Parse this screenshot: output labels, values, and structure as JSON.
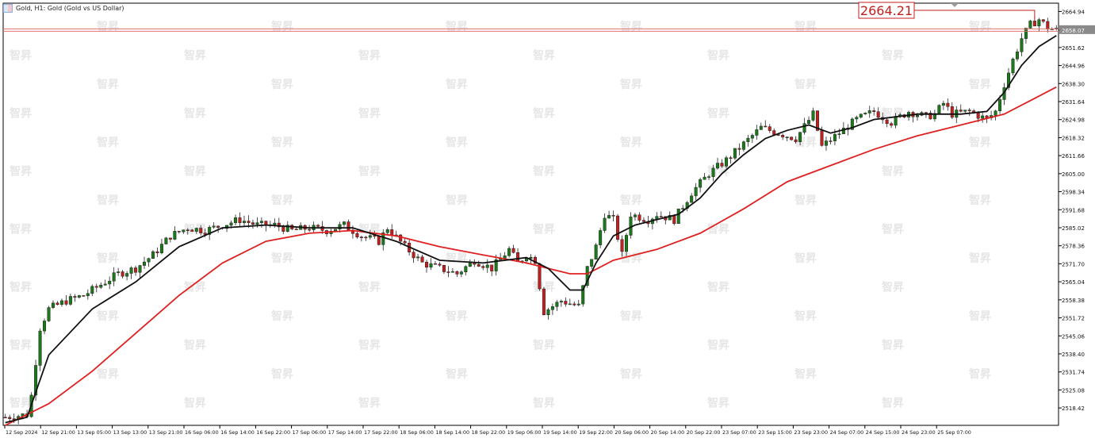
{
  "window": {
    "title": "Gold, H1: Gold (Gold vs US Dollar)",
    "watermark_text": "智昇"
  },
  "price_label": "2664.21",
  "current_price_tag": "2658.07",
  "colors": {
    "bull": "#1a7a1a",
    "bear": "#c41f1f",
    "ma_fast": "#111111",
    "ma_slow": "#e02020",
    "hline": "#e07070"
  },
  "chart_data": {
    "type": "candlestick",
    "title": "Gold, H1: Gold (Gold vs US Dollar)",
    "symbol": "Gold",
    "timeframe": "H1",
    "ylim": [
      2512,
      2668
    ],
    "y_ticks": [
      2664.94,
      2658.07,
      2651.62,
      2644.96,
      2638.3,
      2631.64,
      2624.98,
      2618.32,
      2611.66,
      2605.0,
      2598.34,
      2591.68,
      2585.02,
      2578.36,
      2571.7,
      2565.04,
      2558.38,
      2551.72,
      2545.06,
      2538.4,
      2531.74,
      2525.08,
      2518.42
    ],
    "x_ticks": [
      "12 Sep 2024",
      "12 Sep 21:00",
      "13 Sep 05:00",
      "13 Sep 13:00",
      "13 Sep 21:00",
      "16 Sep 06:00",
      "16 Sep 14:00",
      "16 Sep 22:00",
      "17 Sep 06:00",
      "17 Sep 14:00",
      "17 Sep 22:00",
      "18 Sep 06:00",
      "18 Sep 14:00",
      "18 Sep 22:00",
      "19 Sep 06:00",
      "19 Sep 14:00",
      "19 Sep 22:00",
      "20 Sep 06:00",
      "20 Sep 14:00",
      "20 Sep 22:00",
      "23 Sep 07:00",
      "23 Sep 15:00",
      "23 Sep 23:00",
      "24 Sep 07:00",
      "24 Sep 15:00",
      "24 Sep 23:00",
      "25 Sep 07:00"
    ],
    "close_path": [
      [
        0,
        2515
      ],
      [
        5,
        2516
      ],
      [
        6,
        2523
      ],
      [
        8,
        2548
      ],
      [
        10,
        2555
      ],
      [
        14,
        2558
      ],
      [
        18,
        2560
      ],
      [
        22,
        2564
      ],
      [
        26,
        2568
      ],
      [
        30,
        2570
      ],
      [
        34,
        2575
      ],
      [
        38,
        2582
      ],
      [
        42,
        2585
      ],
      [
        46,
        2584
      ],
      [
        50,
        2586
      ],
      [
        54,
        2588
      ],
      [
        58,
        2586
      ],
      [
        62,
        2586
      ],
      [
        66,
        2584
      ],
      [
        70,
        2585
      ],
      [
        74,
        2584
      ],
      [
        78,
        2586
      ],
      [
        82,
        2582
      ],
      [
        86,
        2580
      ],
      [
        88,
        2585
      ],
      [
        92,
        2578
      ],
      [
        96,
        2572
      ],
      [
        100,
        2570
      ],
      [
        104,
        2568
      ],
      [
        108,
        2573
      ],
      [
        112,
        2570
      ],
      [
        116,
        2577
      ],
      [
        118,
        2572
      ],
      [
        120,
        2575
      ],
      [
        122,
        2573
      ],
      [
        124,
        2554
      ],
      [
        128,
        2558
      ],
      [
        132,
        2556
      ],
      [
        134,
        2570
      ],
      [
        136,
        2578
      ],
      [
        138,
        2590
      ],
      [
        140,
        2588
      ],
      [
        142,
        2575
      ],
      [
        144,
        2590
      ],
      [
        148,
        2588
      ],
      [
        150,
        2590
      ],
      [
        154,
        2588
      ],
      [
        158,
        2598
      ],
      [
        162,
        2605
      ],
      [
        166,
        2610
      ],
      [
        170,
        2616
      ],
      [
        174,
        2622
      ],
      [
        178,
        2620
      ],
      [
        182,
        2618
      ],
      [
        186,
        2627
      ],
      [
        188,
        2615
      ],
      [
        192,
        2620
      ],
      [
        196,
        2625
      ],
      [
        200,
        2628
      ],
      [
        204,
        2624
      ],
      [
        208,
        2628
      ],
      [
        212,
        2626
      ],
      [
        214,
        2627
      ],
      [
        216,
        2631
      ],
      [
        218,
        2627
      ],
      [
        222,
        2628
      ],
      [
        226,
        2625
      ],
      [
        228,
        2628
      ],
      [
        230,
        2638
      ],
      [
        232,
        2647
      ],
      [
        234,
        2655
      ],
      [
        236,
        2660
      ],
      [
        238,
        2662
      ],
      [
        240,
        2659
      ],
      [
        242,
        2658
      ]
    ],
    "ma_fast_path": [
      [
        0,
        2513
      ],
      [
        5,
        2515
      ],
      [
        10,
        2538
      ],
      [
        20,
        2555
      ],
      [
        30,
        2565
      ],
      [
        40,
        2578
      ],
      [
        50,
        2585
      ],
      [
        60,
        2586
      ],
      [
        70,
        2585
      ],
      [
        80,
        2585
      ],
      [
        90,
        2580
      ],
      [
        100,
        2573
      ],
      [
        110,
        2572
      ],
      [
        120,
        2574
      ],
      [
        125,
        2570
      ],
      [
        130,
        2562
      ],
      [
        133,
        2562
      ],
      [
        136,
        2572
      ],
      [
        140,
        2582
      ],
      [
        145,
        2586
      ],
      [
        150,
        2588
      ],
      [
        155,
        2590
      ],
      [
        160,
        2596
      ],
      [
        165,
        2605
      ],
      [
        170,
        2612
      ],
      [
        175,
        2618
      ],
      [
        180,
        2621
      ],
      [
        185,
        2623
      ],
      [
        190,
        2620
      ],
      [
        195,
        2622
      ],
      [
        200,
        2625
      ],
      [
        210,
        2627
      ],
      [
        220,
        2627
      ],
      [
        226,
        2628
      ],
      [
        230,
        2635
      ],
      [
        234,
        2645
      ],
      [
        238,
        2652
      ],
      [
        242,
        2656
      ]
    ],
    "ma_slow_path": [
      [
        0,
        2512
      ],
      [
        10,
        2520
      ],
      [
        20,
        2532
      ],
      [
        30,
        2546
      ],
      [
        40,
        2560
      ],
      [
        50,
        2572
      ],
      [
        60,
        2580
      ],
      [
        70,
        2583
      ],
      [
        80,
        2584
      ],
      [
        90,
        2582
      ],
      [
        100,
        2578
      ],
      [
        110,
        2575
      ],
      [
        120,
        2572
      ],
      [
        125,
        2570
      ],
      [
        130,
        2568
      ],
      [
        134,
        2568
      ],
      [
        140,
        2573
      ],
      [
        150,
        2577
      ],
      [
        160,
        2583
      ],
      [
        170,
        2592
      ],
      [
        180,
        2602
      ],
      [
        190,
        2608
      ],
      [
        200,
        2614
      ],
      [
        210,
        2619
      ],
      [
        220,
        2623
      ],
      [
        230,
        2627
      ],
      [
        236,
        2632
      ],
      [
        242,
        2637
      ]
    ],
    "ohlc_sampling_step": 1
  }
}
